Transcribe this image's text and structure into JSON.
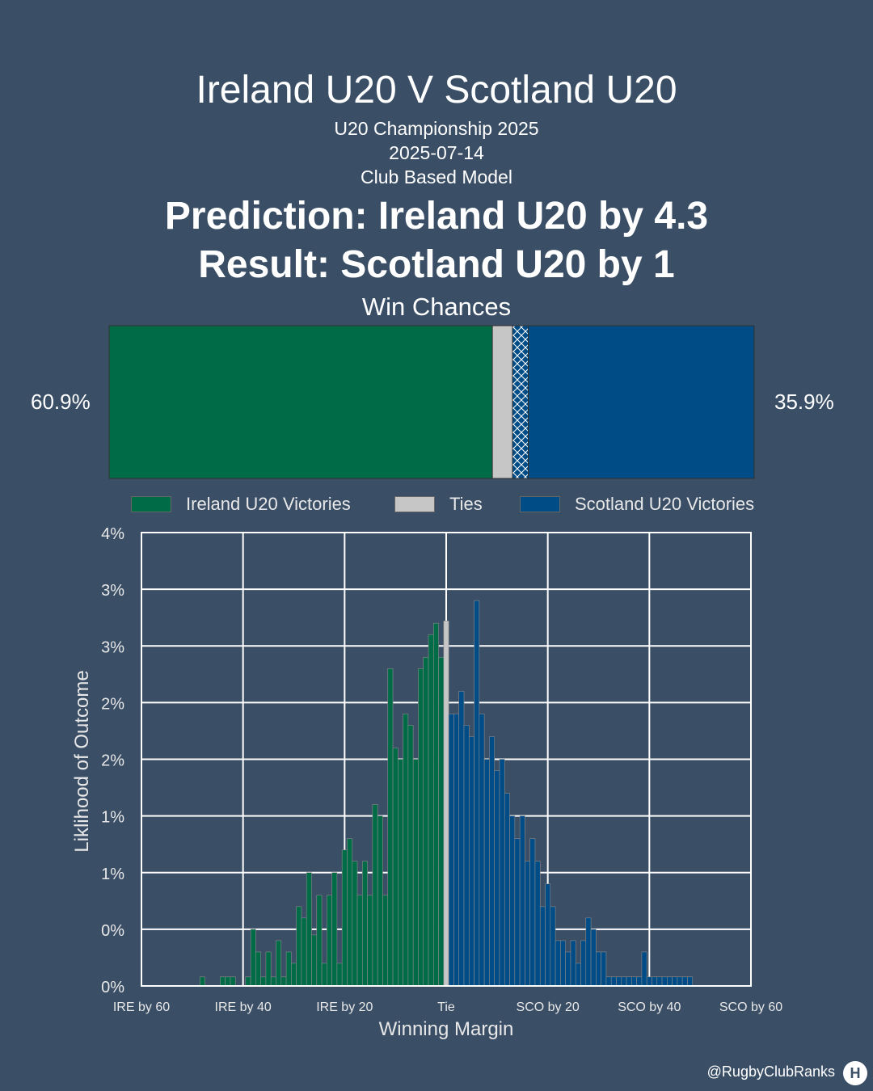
{
  "header": {
    "title": "Ireland U20 V Scotland U20",
    "competition": "U20 Championship 2025",
    "date": "2025-07-14",
    "model": "Club Based Model",
    "prediction": "Prediction: Ireland U20 by 4.3",
    "result": "Result: Scotland U20 by 1",
    "win_chances_title": "Win Chances"
  },
  "win_chances": {
    "home_pct_label": "60.9%",
    "away_pct_label": "35.9%",
    "home_win": 60.9,
    "tie": 3.2,
    "actual_margin_marker_share": 2.5,
    "away_win": 35.9,
    "colors": {
      "home": "#006c47",
      "tie": "#c6c6c6",
      "away": "#004c86"
    }
  },
  "legend": {
    "items": [
      {
        "label": "Ireland U20 Victories",
        "color": "#006c47"
      },
      {
        "label": "Ties",
        "color": "#c6c6c6"
      },
      {
        "label": "Scotland U20 Victories",
        "color": "#004c86"
      }
    ]
  },
  "chart_data": {
    "type": "bar",
    "xlabel": "Winning Margin",
    "ylabel": "Liklihood of Outcome",
    "xlim": [
      -60,
      60
    ],
    "ylim": [
      0,
      4
    ],
    "x_ticks": [
      -60,
      -40,
      -20,
      0,
      20,
      40,
      60
    ],
    "x_tick_labels": [
      "IRE by 60",
      "IRE by 40",
      "IRE by 20",
      "Tie",
      "SCO by 20",
      "SCO by 40",
      "SCO by 60"
    ],
    "y_ticks": [
      0,
      0.5,
      1,
      1.5,
      2,
      2.5,
      3,
      3.5,
      4
    ],
    "y_tick_labels": [
      "0%",
      "0%",
      "1%",
      "1%",
      "2%",
      "2%",
      "3%",
      "3%",
      "4%"
    ],
    "grid": true,
    "series": [
      {
        "name": "Ireland U20 Victories",
        "color": "#006c47",
        "x": [
          -48,
          -44,
          -43,
          -42,
          -39,
          -38,
          -37,
          -36,
          -35,
          -34,
          -33,
          -32,
          -31,
          -30,
          -29,
          -28,
          -27,
          -26,
          -25,
          -24,
          -23,
          -22,
          -21,
          -20,
          -19,
          -18,
          -17,
          -16,
          -15,
          -14,
          -13,
          -12,
          -11,
          -10,
          -9,
          -8,
          -7,
          -6,
          -5,
          -4,
          -3,
          -2,
          -1
        ],
        "values": [
          0.08,
          0.08,
          0.08,
          0.08,
          0.08,
          0.5,
          0.3,
          0.08,
          0.3,
          0.08,
          0.4,
          0.08,
          0.3,
          0.2,
          0.7,
          0.6,
          1.0,
          0.45,
          0.8,
          0.2,
          0.8,
          1.0,
          0.2,
          1.2,
          1.3,
          1.1,
          0.8,
          1.1,
          0.8,
          1.6,
          1.5,
          0.8,
          2.8,
          2.1,
          2.0,
          2.4,
          2.3,
          2.0,
          2.8,
          2.9,
          3.1,
          3.2,
          2.9
        ]
      },
      {
        "name": "Ties",
        "color": "#c6c6c6",
        "x": [
          0
        ],
        "values": [
          3.22
        ]
      },
      {
        "name": "Scotland U20 Victories",
        "color": "#004c86",
        "x": [
          1,
          2,
          3,
          4,
          5,
          6,
          7,
          8,
          9,
          10,
          11,
          12,
          13,
          14,
          15,
          16,
          17,
          18,
          19,
          20,
          21,
          22,
          23,
          24,
          25,
          26,
          27,
          28,
          29,
          30,
          31,
          32,
          33,
          34,
          35,
          36,
          37,
          38,
          39,
          40,
          41,
          42,
          43,
          44,
          45,
          46,
          47,
          48
        ],
        "values": [
          2.4,
          2.4,
          2.6,
          2.3,
          2.2,
          3.4,
          2.4,
          2.0,
          2.2,
          1.9,
          2.0,
          1.7,
          1.5,
          1.3,
          1.5,
          1.1,
          1.3,
          1.1,
          0.7,
          0.9,
          0.7,
          0.4,
          0.4,
          0.3,
          0.4,
          0.2,
          0.4,
          0.6,
          0.5,
          0.3,
          0.3,
          0.08,
          0.08,
          0.08,
          0.08,
          0.08,
          0.08,
          0.08,
          0.3,
          0.08,
          0.08,
          0.08,
          0.08,
          0.08,
          0.08,
          0.08,
          0.08,
          0.08
        ]
      }
    ]
  },
  "footer": {
    "credit": "@RugbyClubRanks",
    "logo_icon": "rugby-posts-icon",
    "logo_glyph": "H"
  }
}
